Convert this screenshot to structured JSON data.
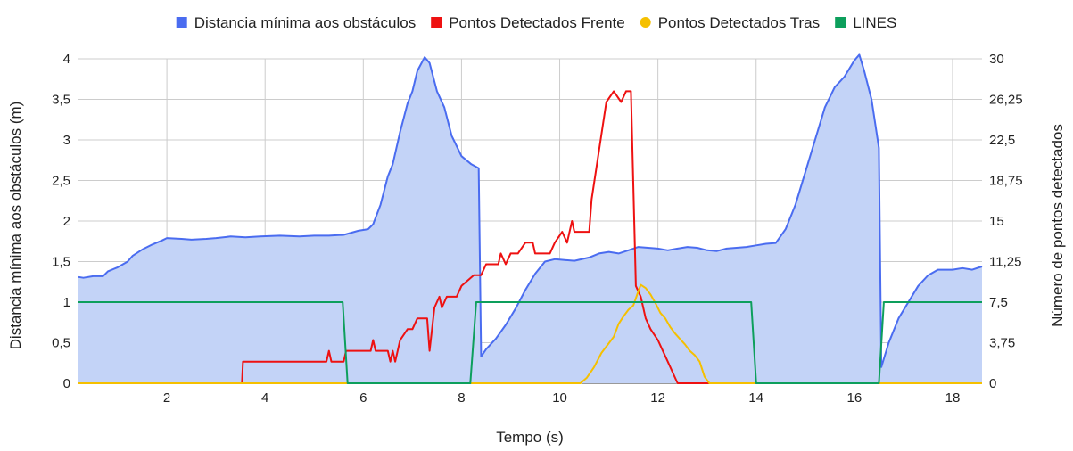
{
  "chart_data": {
    "type": "line",
    "title": "",
    "xlabel": "Tempo (s)",
    "ylabel": "Distancia mínima aos obstáculos (m)",
    "y2label": "Número de pontos detectados",
    "xlim": [
      0.2,
      18.6
    ],
    "ylim": [
      0,
      4
    ],
    "y2lim": [
      0,
      30
    ],
    "x_ticks": [
      "2",
      "4",
      "6",
      "8",
      "10",
      "12",
      "14",
      "16",
      "18"
    ],
    "x_tick_values": [
      2,
      4,
      6,
      8,
      10,
      12,
      14,
      16,
      18
    ],
    "y_ticks": [
      "0",
      "0,5",
      "1",
      "1,5",
      "2",
      "2,5",
      "3",
      "3,5",
      "4"
    ],
    "y_tick_values": [
      0,
      0.5,
      1,
      1.5,
      2,
      2.5,
      3,
      3.5,
      4
    ],
    "y2_ticks": [
      "0",
      "3,75",
      "7,5",
      "11,25",
      "15",
      "18,75",
      "22,5",
      "26,25",
      "30"
    ],
    "y2_tick_values": [
      0,
      3.75,
      7.5,
      11.25,
      15,
      18.75,
      22.5,
      26.25,
      30
    ],
    "grid": true,
    "legend_position": "top",
    "series": [
      {
        "name": "Distancia mínima aos obstáculos",
        "axis": "left",
        "style": "area",
        "color": "#4a6cf0",
        "fill": "#c3d3f7",
        "points": [
          [
            0.2,
            1.31
          ],
          [
            0.3,
            1.3
          ],
          [
            0.5,
            1.32
          ],
          [
            0.7,
            1.32
          ],
          [
            0.8,
            1.38
          ],
          [
            1.0,
            1.43
          ],
          [
            1.2,
            1.5
          ],
          [
            1.3,
            1.57
          ],
          [
            1.5,
            1.65
          ],
          [
            1.7,
            1.71
          ],
          [
            1.9,
            1.76
          ],
          [
            2.0,
            1.79
          ],
          [
            2.3,
            1.78
          ],
          [
            2.5,
            1.77
          ],
          [
            2.8,
            1.78
          ],
          [
            3.0,
            1.79
          ],
          [
            3.3,
            1.81
          ],
          [
            3.6,
            1.8
          ],
          [
            3.9,
            1.81
          ],
          [
            4.3,
            1.82
          ],
          [
            4.7,
            1.81
          ],
          [
            5.0,
            1.82
          ],
          [
            5.3,
            1.82
          ],
          [
            5.6,
            1.83
          ],
          [
            5.9,
            1.88
          ],
          [
            6.1,
            1.9
          ],
          [
            6.2,
            1.96
          ],
          [
            6.35,
            2.2
          ],
          [
            6.5,
            2.55
          ],
          [
            6.6,
            2.7
          ],
          [
            6.75,
            3.1
          ],
          [
            6.9,
            3.45
          ],
          [
            7.0,
            3.6
          ],
          [
            7.1,
            3.85
          ],
          [
            7.25,
            4.02
          ],
          [
            7.35,
            3.95
          ],
          [
            7.5,
            3.6
          ],
          [
            7.65,
            3.4
          ],
          [
            7.8,
            3.05
          ],
          [
            8.0,
            2.8
          ],
          [
            8.2,
            2.7
          ],
          [
            8.35,
            2.65
          ],
          [
            8.4,
            0.33
          ],
          [
            8.5,
            0.42
          ],
          [
            8.7,
            0.55
          ],
          [
            8.9,
            0.72
          ],
          [
            9.1,
            0.92
          ],
          [
            9.3,
            1.15
          ],
          [
            9.5,
            1.35
          ],
          [
            9.7,
            1.5
          ],
          [
            9.9,
            1.53
          ],
          [
            10.1,
            1.52
          ],
          [
            10.3,
            1.51
          ],
          [
            10.6,
            1.55
          ],
          [
            10.8,
            1.6
          ],
          [
            11.0,
            1.62
          ],
          [
            11.2,
            1.6
          ],
          [
            11.4,
            1.64
          ],
          [
            11.6,
            1.68
          ],
          [
            11.8,
            1.67
          ],
          [
            12.0,
            1.66
          ],
          [
            12.2,
            1.64
          ],
          [
            12.4,
            1.66
          ],
          [
            12.6,
            1.68
          ],
          [
            12.8,
            1.67
          ],
          [
            13.0,
            1.64
          ],
          [
            13.2,
            1.63
          ],
          [
            13.4,
            1.66
          ],
          [
            13.6,
            1.67
          ],
          [
            13.8,
            1.68
          ],
          [
            14.0,
            1.7
          ],
          [
            14.2,
            1.72
          ],
          [
            14.4,
            1.73
          ],
          [
            14.6,
            1.9
          ],
          [
            14.8,
            2.2
          ],
          [
            15.0,
            2.6
          ],
          [
            15.2,
            3.0
          ],
          [
            15.4,
            3.4
          ],
          [
            15.6,
            3.65
          ],
          [
            15.8,
            3.78
          ],
          [
            16.0,
            3.98
          ],
          [
            16.1,
            4.05
          ],
          [
            16.2,
            3.85
          ],
          [
            16.35,
            3.5
          ],
          [
            16.5,
            2.9
          ],
          [
            16.55,
            0.2
          ],
          [
            16.7,
            0.5
          ],
          [
            16.9,
            0.8
          ],
          [
            17.1,
            1.0
          ],
          [
            17.3,
            1.2
          ],
          [
            17.5,
            1.33
          ],
          [
            17.7,
            1.4
          ],
          [
            18.0,
            1.4
          ],
          [
            18.2,
            1.42
          ],
          [
            18.4,
            1.4
          ],
          [
            18.6,
            1.44
          ]
        ]
      },
      {
        "name": "Pontos Detectados Frente",
        "axis": "right",
        "style": "line",
        "color": "#ee1111",
        "points": [
          [
            0.2,
            0
          ],
          [
            3.53,
            0
          ],
          [
            3.55,
            2
          ],
          [
            5.25,
            2
          ],
          [
            5.3,
            3
          ],
          [
            5.35,
            2
          ],
          [
            5.6,
            2
          ],
          [
            5.65,
            3
          ],
          [
            6.15,
            3
          ],
          [
            6.2,
            4
          ],
          [
            6.25,
            3
          ],
          [
            6.5,
            3
          ],
          [
            6.55,
            2
          ],
          [
            6.6,
            3
          ],
          [
            6.65,
            2
          ],
          [
            6.75,
            4
          ],
          [
            6.9,
            5
          ],
          [
            7.0,
            5
          ],
          [
            7.1,
            6
          ],
          [
            7.3,
            6
          ],
          [
            7.35,
            3
          ],
          [
            7.45,
            7
          ],
          [
            7.55,
            8
          ],
          [
            7.6,
            7
          ],
          [
            7.7,
            8
          ],
          [
            7.9,
            8
          ],
          [
            8.0,
            9
          ],
          [
            8.25,
            10
          ],
          [
            8.4,
            10
          ],
          [
            8.5,
            11
          ],
          [
            8.75,
            11
          ],
          [
            8.8,
            12
          ],
          [
            8.9,
            11
          ],
          [
            9.0,
            12
          ],
          [
            9.15,
            12
          ],
          [
            9.3,
            13
          ],
          [
            9.45,
            13
          ],
          [
            9.5,
            12
          ],
          [
            9.8,
            12
          ],
          [
            9.9,
            13
          ],
          [
            10.05,
            14
          ],
          [
            10.15,
            13
          ],
          [
            10.25,
            15
          ],
          [
            10.3,
            14
          ],
          [
            10.6,
            14
          ],
          [
            10.65,
            17
          ],
          [
            10.75,
            20
          ],
          [
            10.85,
            23
          ],
          [
            10.95,
            26
          ],
          [
            11.1,
            27
          ],
          [
            11.25,
            26
          ],
          [
            11.35,
            27
          ],
          [
            11.45,
            27
          ],
          [
            11.55,
            9
          ],
          [
            11.65,
            8
          ],
          [
            11.75,
            6
          ],
          [
            11.85,
            5
          ],
          [
            12.0,
            4
          ],
          [
            12.1,
            3
          ],
          [
            12.2,
            2
          ],
          [
            12.3,
            1
          ],
          [
            12.4,
            0
          ],
          [
            18.6,
            0
          ]
        ]
      },
      {
        "name": "Pontos Detectados Tras",
        "axis": "right",
        "style": "line",
        "color": "#f5c000",
        "points": [
          [
            0.2,
            0
          ],
          [
            10.42,
            0
          ],
          [
            10.55,
            0.5
          ],
          [
            10.7,
            1.5
          ],
          [
            10.85,
            2.8
          ],
          [
            11.0,
            3.7
          ],
          [
            11.1,
            4.3
          ],
          [
            11.2,
            5.5
          ],
          [
            11.3,
            6.2
          ],
          [
            11.4,
            6.8
          ],
          [
            11.5,
            7.2
          ],
          [
            11.6,
            8.5
          ],
          [
            11.65,
            9.1
          ],
          [
            11.75,
            8.8
          ],
          [
            11.85,
            8.2
          ],
          [
            11.95,
            7.4
          ],
          [
            12.05,
            6.5
          ],
          [
            12.15,
            6.0
          ],
          [
            12.25,
            5.2
          ],
          [
            12.35,
            4.6
          ],
          [
            12.45,
            4.1
          ],
          [
            12.55,
            3.6
          ],
          [
            12.65,
            3.0
          ],
          [
            12.75,
            2.6
          ],
          [
            12.85,
            2.0
          ],
          [
            12.95,
            0.6
          ],
          [
            13.05,
            0
          ],
          [
            18.6,
            0
          ]
        ]
      },
      {
        "name": "LINES",
        "axis": "right",
        "style": "line",
        "color": "#0d9f5c",
        "points": [
          [
            0.2,
            7.5
          ],
          [
            5.58,
            7.5
          ],
          [
            5.68,
            0
          ],
          [
            8.18,
            0
          ],
          [
            8.3,
            7.5
          ],
          [
            13.9,
            7.5
          ],
          [
            14.0,
            0
          ],
          [
            16.5,
            0
          ],
          [
            16.6,
            7.5
          ],
          [
            18.6,
            7.5
          ]
        ]
      }
    ]
  }
}
